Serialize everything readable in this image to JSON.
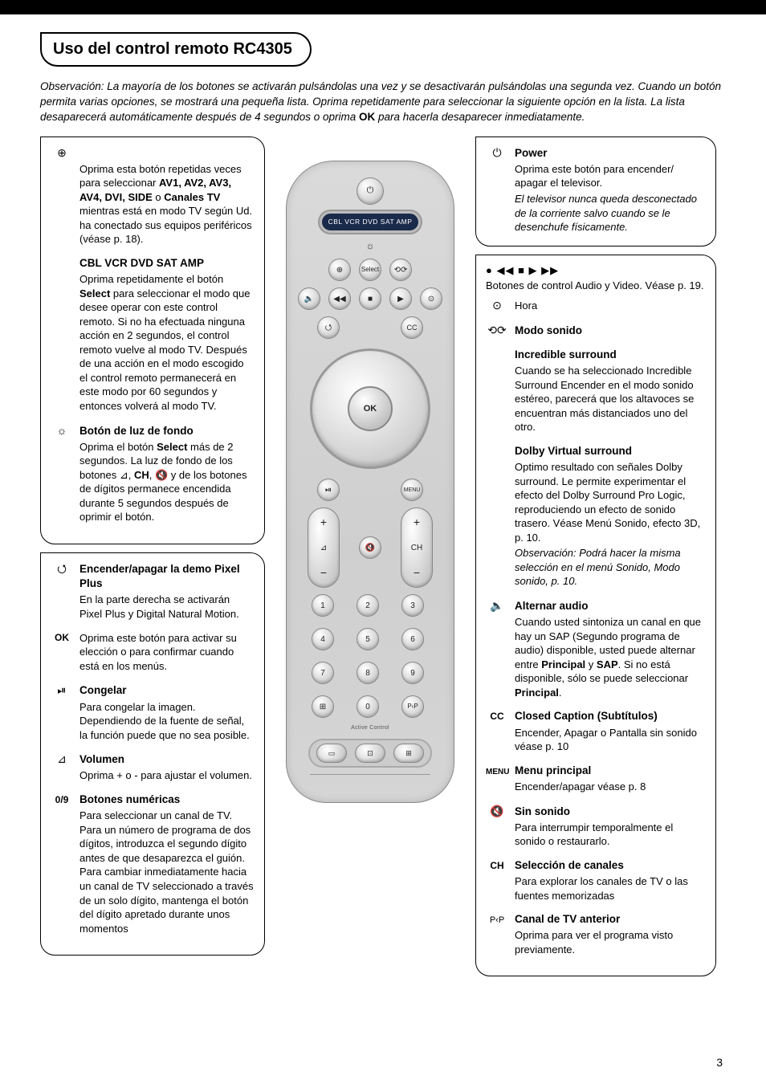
{
  "title": "Uso del control remoto RC4305",
  "intro_html": "Observación: La mayoría de los botones se activarán pulsándolas una vez y se desactivarán pulsándolas una segunda vez. Cuando un botón permita varias opciones, se mostrará una pequeña lista. Oprima repetidamente para seleccionar la siguiente opción en la lista. La lista desaparecerá automáticamente después de 4 segundos o oprima <span class=\"ok-bold\">OK</span> para hacerla desaparecer inmediatamente.",
  "page_number": "3",
  "left": {
    "av": {
      "icon": "⊕",
      "body_html": "Oprima esta botón repetidas veces para seleccionar <b>AV1, AV2, AV3, AV4, DVI, SIDE</b> o <b>Canales TV</b> mientras está en modo TV según Ud. ha conectado sus equipos periféricos (véase p. 18)."
    },
    "select": {
      "title": "CBL VCR DVD SAT AMP",
      "body_html": "Oprima repetidamente el botón <b>Select</b> para seleccionar el modo que desee operar con este control remoto. Si no ha efectuada ninguna acción en 2 segundos, el control remoto vuelve al modo TV.  Después de una acción en el modo escogido el control remoto permanecerá en este modo por 60 segundos y entonces volverá al modo TV."
    },
    "backlight": {
      "icon": "☼",
      "title": "Botón de luz de fondo",
      "body_html": "Oprima el botón <b>Select</b> más de 2 segundos. La luz de fondo de los botones ⊿, <b>CH</b>, 🔇 y de los botones de dígitos permanece encendida durante 5 segundos después de oprimir el botón."
    },
    "demo": {
      "icon": "⭯",
      "title_html": "Encender/apagar la demo Pixel Plus",
      "body": "En la parte derecha se activarán Pixel Plus y Digital Natural Motion."
    },
    "ok": {
      "icon": "OK",
      "body": "Oprima este botón para activar su elección o para confirmar cuando está en los menús."
    },
    "freeze": {
      "icon": "⏯",
      "title": "Congelar",
      "body": "Para congelar la imagen. Dependiendo de la fuente de señal, la función puede que no sea posible."
    },
    "volume": {
      "icon": "⊿",
      "title": "Volumen",
      "body": "Oprima + o - para ajustar el volumen."
    },
    "digits": {
      "icon": "0/9",
      "title": "Botones numéricas",
      "body": "Para seleccionar un canal de TV. Para un número de programa de dos dígitos, introduzca el segundo dígito antes de que desaparezca el guión. Para cambiar inmediatamente hacia un canal de TV seleccionado a través de un solo dígito, mantenga el botón del dígito apretado durante unos momentos"
    }
  },
  "right": {
    "power": {
      "icon": "⏻",
      "title": "Power",
      "body": "Oprima este botón para encender/ apagar el televisor.",
      "obs": "El televisor nunca queda desconectado de la corriente salvo cuando se le desenchufe físicamente."
    },
    "av_ctrl": {
      "icon_line": "● ◀◀ ■ ▶ ▶▶",
      "body": "Botones de control Audio y Video. Véase p. 19.",
      "clock_icon": "⊙",
      "clock_label": "Hora"
    },
    "sound_mode": {
      "icon": "⟲⟳",
      "title": "Modo sonido"
    },
    "incredible": {
      "title": "Incredible surround",
      "body": "Cuando se ha seleccionado Incredible Surround Encender en el modo sonido estéreo, parecerá que los altavoces se encuentran más distanciados uno del otro."
    },
    "dolby": {
      "title": "Dolby Virtual surround",
      "body": "Optimo resultado con señales Dolby surround. Le permite experimentar el efecto del Dolby Surround Pro Logic, reproduciendo un efecto de sonido trasero. Véase Menú Sonido, efecto 3D, p. 10.",
      "obs": "Observación: Podrá hacer la misma selección en el menú Sonido, Modo sonido, p. 10."
    },
    "alt_audio": {
      "icon": "🔈",
      "title": "Alternar audio",
      "body_html": "Cuando usted sintoniza un canal en que hay un SAP (Segundo programa de audio) disponible, usted puede alternar entre <b>Principal</b> y <b>SAP</b>. Si no está disponible, sólo se puede seleccionar <b>Principal</b>."
    },
    "cc": {
      "icon": "CC",
      "title": "Closed Caption (Subtítulos)",
      "body": "Encender, Apagar o Pantalla sin sonido  véase p. 10"
    },
    "menu": {
      "icon": "MENU",
      "title": "Menu principal",
      "body": "Encender/apagar  véase p. 8"
    },
    "mute": {
      "icon": "🔇",
      "title": "Sin sonido",
      "body": "Para interrumpir temporalmente el sonido o restaurarlo."
    },
    "ch": {
      "icon": "CH",
      "title": "Selección de canales",
      "body": "Para explorar los canales de TV o las fuentes memorizadas"
    },
    "pp": {
      "icon": "P‹P",
      "title": "Canal de TV anterior",
      "body": "Oprima para ver el programa visto previamente."
    }
  },
  "remote": {
    "mode_labels": "CBL VCR DVD SAT AMP",
    "select": "Select",
    "ok": "OK",
    "cc": "CC",
    "menu": "MENU",
    "vol": "⊿",
    "ch": "CH",
    "mute": "🔇",
    "digits": [
      "1",
      "2",
      "3",
      "4",
      "5",
      "6",
      "7",
      "8",
      "9",
      "0"
    ],
    "info": "⊞",
    "pp": "P‹P",
    "ac": "Active Control"
  }
}
